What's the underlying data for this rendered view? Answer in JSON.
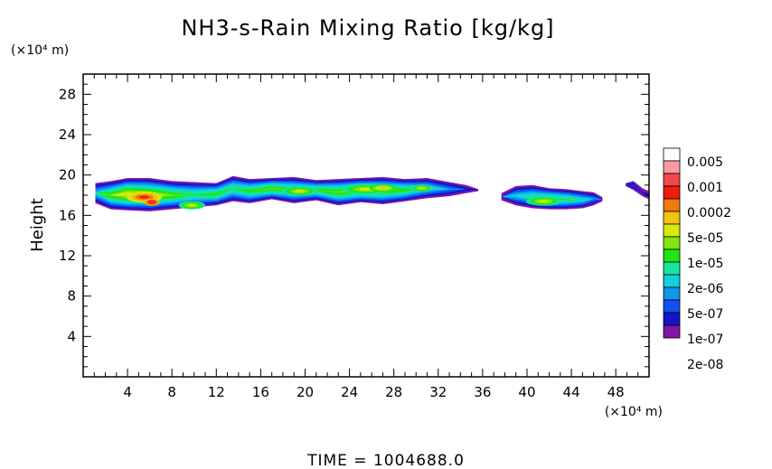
{
  "chart_data": {
    "type": "heatmap",
    "title": "NH3-s-Rain Mixing Ratio [kg/kg]",
    "ylabel": "Height",
    "x_unit": "(×10⁴ m)",
    "y_unit": "(×10⁴ m)",
    "time_label": "TIME  =  1004688.0",
    "xlim": [
      0,
      51
    ],
    "ylim": [
      0,
      30
    ],
    "xticks": [
      4,
      8,
      12,
      16,
      20,
      24,
      28,
      32,
      36,
      40,
      44,
      48
    ],
    "yticks": [
      4,
      8,
      12,
      16,
      20,
      24,
      28
    ],
    "log_scale": true,
    "colorbar": {
      "labels": [
        "0.005",
        "0.001",
        "0.0002",
        "5e-05",
        "1e-05",
        "2e-06",
        "5e-07",
        "1e-07",
        "2e-08"
      ],
      "colors": [
        "#ffffff",
        "#fa9aa0",
        "#f24848",
        "#f21c0c",
        "#f2780c",
        "#f2c40c",
        "#d2ec0c",
        "#80e60c",
        "#1ee614",
        "#14e69e",
        "#0ed2dc",
        "#0e96f0",
        "#0e50f0",
        "#1414c8",
        "#8214aa"
      ]
    },
    "bands": [
      {
        "name": "west",
        "x": [
          1.1,
          2.5,
          4.0,
          6.0,
          8.0,
          10.0,
          12.0,
          13.5,
          15.0,
          17.0,
          19.0,
          21.0,
          23.0,
          25.0,
          27.0,
          29.0,
          31.0,
          33.0,
          34.5,
          35.6
        ],
        "top": [
          19.2,
          19.4,
          19.7,
          19.7,
          19.4,
          19.3,
          19.2,
          19.9,
          19.6,
          19.7,
          19.8,
          19.5,
          19.6,
          19.7,
          19.8,
          19.6,
          19.7,
          19.3,
          19.0,
          18.6
        ],
        "bottom": [
          17.2,
          16.6,
          16.5,
          16.4,
          16.6,
          16.8,
          17.0,
          17.4,
          17.2,
          17.6,
          17.2,
          17.5,
          17.0,
          17.3,
          17.1,
          17.4,
          17.7,
          17.9,
          18.2,
          18.4
        ],
        "peak": [
          0.8,
          1.3,
          1.6,
          1.5,
          1.3,
          1.1,
          1.2,
          1.1,
          1.2,
          1.3,
          1.2,
          1.2,
          1.3,
          1.4,
          1.3,
          1.2,
          0.9,
          0.6,
          0.3,
          0.2
        ]
      },
      {
        "name": "east",
        "x": [
          37.7,
          39.0,
          40.5,
          42.0,
          43.5,
          45.0,
          46.0,
          46.8
        ],
        "top": [
          18.2,
          18.9,
          19.0,
          18.7,
          18.6,
          18.4,
          18.3,
          17.8
        ],
        "bottom": [
          17.5,
          17.0,
          16.7,
          16.6,
          16.6,
          16.7,
          17.0,
          17.4
        ],
        "peak": [
          0.2,
          0.8,
          1.0,
          1.2,
          1.1,
          0.9,
          0.6,
          0.2
        ]
      },
      {
        "name": "edge",
        "x": [
          48.9,
          49.6,
          50.4,
          51.0
        ],
        "top": [
          19.2,
          19.4,
          18.7,
          18.4
        ],
        "bottom": [
          18.9,
          18.5,
          17.9,
          17.6
        ],
        "peak": [
          0.3,
          0.4,
          0.2,
          0.3
        ]
      }
    ],
    "blobs": [
      {
        "x": 5.5,
        "y": 17.8,
        "rx": 1.6,
        "ry": 0.55,
        "level": 3
      },
      {
        "x": 6.2,
        "y": 17.3,
        "rx": 0.7,
        "ry": 0.35,
        "level": 2
      },
      {
        "x": 9.8,
        "y": 17.0,
        "rx": 1.2,
        "ry": 0.4,
        "level": 6
      },
      {
        "x": 19.5,
        "y": 18.4,
        "rx": 1.6,
        "ry": 0.45,
        "level": 6
      },
      {
        "x": 25.5,
        "y": 18.6,
        "rx": 2.2,
        "ry": 0.5,
        "level": 6
      },
      {
        "x": 27.0,
        "y": 18.7,
        "rx": 1.2,
        "ry": 0.35,
        "level": 5
      },
      {
        "x": 30.5,
        "y": 18.7,
        "rx": 1.0,
        "ry": 0.35,
        "level": 6
      },
      {
        "x": 41.5,
        "y": 17.4,
        "rx": 1.6,
        "ry": 0.45,
        "level": 6
      },
      {
        "x": 44.0,
        "y": 17.6,
        "rx": 0.6,
        "ry": 0.25,
        "level": 7
      }
    ]
  }
}
